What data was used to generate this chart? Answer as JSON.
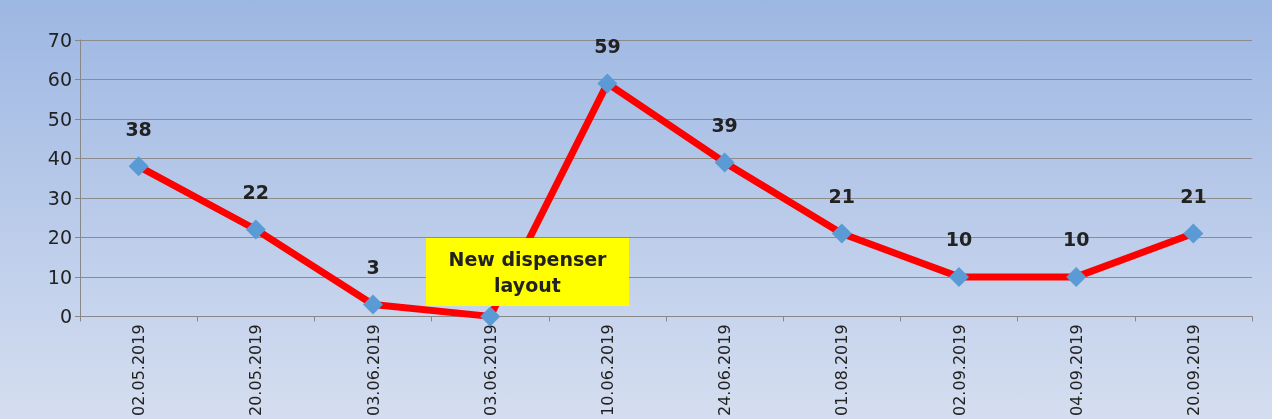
{
  "chart_data": {
    "type": "line",
    "categories": [
      "02.05.2019",
      "20.05.2019",
      "03.06.2019",
      "03.06.2019",
      "10.06.2019",
      "24.06.2019",
      "01.08.2019",
      "02.09.2019",
      "04.09.2019",
      "20.09.2019"
    ],
    "series": [
      {
        "color": "#ff0000",
        "values": [
          38,
          22,
          3,
          0,
          59,
          39,
          21,
          10,
          10,
          21
        ],
        "value_labels": [
          "38",
          "22",
          "3",
          null,
          "59",
          "39",
          "21",
          "10",
          "10",
          "21"
        ]
      }
    ],
    "ylim": [
      0,
      70
    ],
    "yticks": [
      0,
      10,
      20,
      30,
      40,
      50,
      60,
      70
    ],
    "grid": "y",
    "marker": "diamond",
    "annotations": [
      "New dispenser layout"
    ]
  }
}
